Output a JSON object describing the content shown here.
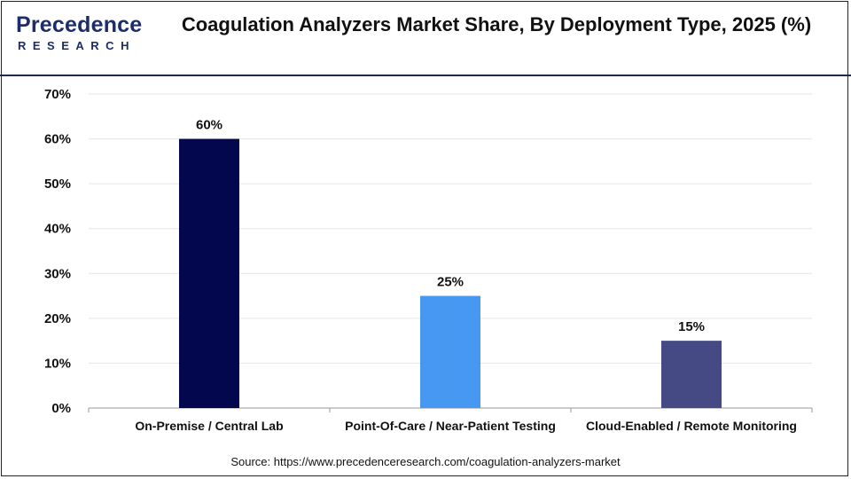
{
  "header": {
    "logo_main": "Precedence",
    "logo_sub": "RESEARCH",
    "title": "Coagulation Analyzers Market Share, By Deployment Type, 2025 (%)"
  },
  "footer": {
    "source": "Source: https://www.precedenceresearch.com/coagulation-analyzers-market"
  },
  "colors": {
    "bar1": "#03074e",
    "bar2": "#4798f0",
    "bar3": "#454a84",
    "grid": "#e6e6e6",
    "text": "#111111",
    "brand": "#1b2d6b"
  },
  "chart_data": {
    "type": "bar",
    "categories": [
      "On-Premise / Central Lab",
      "Point-Of-Care / Near-Patient Testing",
      "Cloud-Enabled / Remote Monitoring"
    ],
    "values": [
      60,
      25,
      15
    ],
    "data_labels": [
      "60%",
      "25%",
      "15%"
    ],
    "ylim": [
      0,
      70
    ],
    "yticks": [
      "0%",
      "10%",
      "20%",
      "30%",
      "40%",
      "50%",
      "60%",
      "70%"
    ],
    "ytick_values": [
      0,
      10,
      20,
      30,
      40,
      50,
      60,
      70
    ],
    "grid": true,
    "legend": "none"
  }
}
